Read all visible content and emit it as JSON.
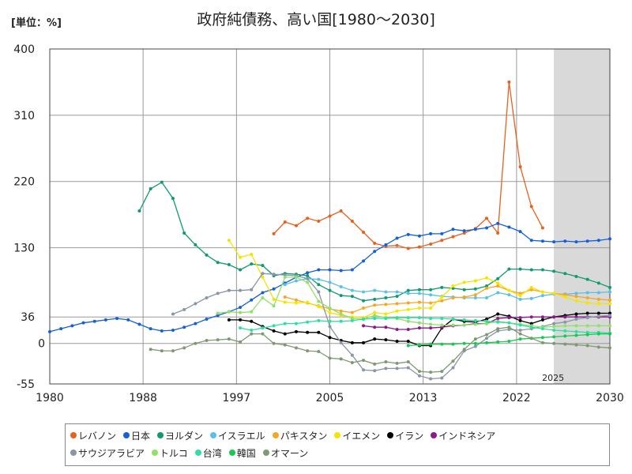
{
  "unit_label": "[単位：%]",
  "chart_data": {
    "type": "line",
    "title": "政府純債務、高い国[1980～2030]",
    "xlabel": "",
    "ylabel": "",
    "xlim": [
      1980,
      2030
    ],
    "ylim": [
      -55,
      400
    ],
    "x_ticks": [
      "1980",
      "1988",
      "1997",
      "2005",
      "2013",
      "2022",
      "2030"
    ],
    "x_tick_values": [
      1980,
      1988.33,
      1996.67,
      2005,
      2013.33,
      2021.67,
      2030
    ],
    "y_ticks": [
      -55,
      0,
      36,
      130,
      220,
      310,
      400
    ],
    "forecast_start": 2025,
    "forecast_label": "2025",
    "forecast_color": "#d9d9d9",
    "grid": true,
    "legend_position": "bottom",
    "series": [
      {
        "name": "レバノン",
        "color": "#e8601c",
        "x": [
          2000,
          2001,
          2002,
          2003,
          2004,
          2005,
          2006,
          2007,
          2008,
          2009,
          2010,
          2011,
          2012,
          2013,
          2014,
          2015,
          2016,
          2017,
          2018,
          2019,
          2020,
          2021,
          2022,
          2023,
          2024
        ],
        "y": [
          149,
          165,
          160,
          170,
          166,
          173,
          180,
          166,
          151,
          136,
          132,
          133,
          129,
          131,
          135,
          140,
          145,
          150,
          156,
          170,
          150,
          355,
          240,
          186,
          157
        ]
      },
      {
        "name": "日本",
        "color": "#1560d8",
        "x": [
          1980,
          1981,
          1982,
          1983,
          1984,
          1985,
          1986,
          1987,
          1988,
          1989,
          1990,
          1991,
          1992,
          1993,
          1994,
          1995,
          1996,
          1997,
          1998,
          1999,
          2000,
          2001,
          2002,
          2003,
          2004,
          2005,
          2006,
          2007,
          2008,
          2009,
          2010,
          2011,
          2012,
          2013,
          2014,
          2015,
          2016,
          2017,
          2018,
          2019,
          2020,
          2021,
          2022,
          2023,
          2024,
          2025,
          2026,
          2027,
          2028,
          2029,
          2030
        ],
        "y": [
          16,
          20,
          24,
          28,
          30,
          32,
          34,
          32,
          26,
          20,
          17,
          18,
          22,
          27,
          33,
          38,
          43,
          49,
          59,
          69,
          74,
          82,
          90,
          96,
          100,
          100,
          99,
          100,
          112,
          125,
          134,
          143,
          148,
          146,
          149,
          149,
          155,
          153,
          155,
          157,
          163,
          158,
          152,
          140,
          139,
          138,
          139,
          138,
          139,
          140,
          142
        ]
      },
      {
        "name": "ヨルダン",
        "color": "#119a70",
        "x": [
          1988,
          1989,
          1990,
          1991,
          1992,
          1993,
          1994,
          1995,
          1996,
          1997,
          1998,
          1999,
          2000,
          2001,
          2002,
          2003,
          2004,
          2005,
          2006,
          2007,
          2008,
          2009,
          2010,
          2011,
          2012,
          2013,
          2014,
          2015,
          2016,
          2017,
          2018,
          2019,
          2020,
          2021,
          2022,
          2023,
          2024,
          2025,
          2026,
          2027,
          2028,
          2029,
          2030
        ],
        "y": [
          180,
          210,
          219,
          197,
          150,
          134,
          120,
          110,
          107,
          100,
          108,
          106,
          92,
          95,
          94,
          92,
          80,
          72,
          65,
          64,
          58,
          60,
          62,
          64,
          72,
          73,
          73,
          76,
          75,
          73,
          74,
          78,
          88,
          101,
          101,
          100,
          100,
          98,
          95,
          91,
          87,
          82,
          76
        ]
      },
      {
        "name": "イスラエル",
        "color": "#5cbfe8",
        "x": [
          2001,
          2002,
          2003,
          2004,
          2005,
          2006,
          2007,
          2008,
          2009,
          2010,
          2011,
          2012,
          2013,
          2014,
          2015,
          2016,
          2017,
          2018,
          2019,
          2020,
          2021,
          2022,
          2023,
          2024,
          2025,
          2026,
          2027,
          2028,
          2029,
          2030
        ],
        "y": [
          80,
          85,
          88,
          87,
          83,
          77,
          72,
          70,
          72,
          70,
          70,
          68,
          68,
          66,
          64,
          63,
          62,
          62,
          62,
          69,
          66,
          60,
          61,
          65,
          67,
          67,
          68,
          69,
          69,
          70
        ]
      },
      {
        "name": "パキスタン",
        "color": "#f5a623",
        "x": [
          2001,
          2002,
          2003,
          2004,
          2005,
          2006,
          2007,
          2008,
          2009,
          2010,
          2011,
          2012,
          2013,
          2014,
          2015,
          2016,
          2017,
          2018,
          2019,
          2020,
          2021,
          2022,
          2023,
          2024,
          2025,
          2026,
          2027,
          2028,
          2029,
          2030
        ],
        "y": [
          63,
          59,
          55,
          51,
          47,
          44,
          42,
          48,
          52,
          53,
          54,
          55,
          56,
          55,
          58,
          62,
          63,
          66,
          75,
          78,
          72,
          68,
          73,
          70,
          68,
          66,
          64,
          62,
          60,
          59
        ]
      },
      {
        "name": "イエメン",
        "color": "#f5e400",
        "x": [
          1996,
          1997,
          1998,
          1999,
          2000,
          2001,
          2002,
          2003,
          2004,
          2005,
          2006,
          2007,
          2008,
          2009,
          2010,
          2011,
          2012,
          2013,
          2014,
          2015,
          2016,
          2017,
          2018,
          2019,
          2020,
          2021,
          2022,
          2023,
          2024,
          2025,
          2026,
          2027,
          2028,
          2029,
          2030
        ],
        "y": [
          140,
          117,
          121,
          90,
          60,
          56,
          55,
          56,
          50,
          42,
          38,
          36,
          35,
          42,
          40,
          44,
          46,
          48,
          48,
          63,
          78,
          83,
          85,
          89,
          82,
          72,
          65,
          76,
          70,
          68,
          63,
          58,
          55,
          54,
          54
        ]
      },
      {
        "name": "イラン",
        "color": "#000000",
        "x": [
          1996,
          1997,
          1998,
          1999,
          2000,
          2001,
          2002,
          2003,
          2004,
          2005,
          2006,
          2007,
          2008,
          2009,
          2010,
          2011,
          2012,
          2013,
          2014,
          2015,
          2016,
          2017,
          2018,
          2019,
          2020,
          2021,
          2022,
          2023,
          2024,
          2025,
          2026,
          2027,
          2028,
          2029,
          2030
        ],
        "y": [
          32,
          32,
          30,
          23,
          17,
          13,
          16,
          15,
          15,
          8,
          4,
          1,
          1,
          6,
          5,
          3,
          3,
          -3,
          -3,
          21,
          33,
          30,
          29,
          33,
          40,
          37,
          31,
          27,
          32,
          36,
          38,
          40,
          41,
          41,
          41
        ]
      },
      {
        "name": "インドネシア",
        "color": "#8a1a8a",
        "x": [
          2008,
          2009,
          2010,
          2011,
          2012,
          2013,
          2014,
          2015,
          2016,
          2017,
          2018,
          2019,
          2020,
          2021,
          2022,
          2023,
          2024,
          2025,
          2026,
          2027,
          2028,
          2029,
          2030
        ],
        "y": [
          24,
          22,
          22,
          19,
          19,
          21,
          21,
          22,
          24,
          25,
          27,
          27,
          34,
          35,
          35,
          36,
          36,
          36,
          36,
          36,
          36,
          36,
          36
        ]
      },
      {
        "name": "サウジアラビア",
        "color": "#8a96a8",
        "x": [
          1991,
          1992,
          1993,
          1994,
          1995,
          1996,
          1997,
          1998,
          1999,
          2000,
          2001,
          2002,
          2003,
          2004,
          2005,
          2006,
          2007,
          2008,
          2009,
          2010,
          2011,
          2012,
          2013,
          2014,
          2015,
          2016,
          2017,
          2018,
          2019,
          2020,
          2021,
          2022,
          2023,
          2024,
          2025,
          2026,
          2027,
          2028,
          2029,
          2030
        ],
        "y": [
          40,
          46,
          54,
          62,
          68,
          72,
          72,
          73,
          95,
          94,
          93,
          92,
          88,
          70,
          23,
          1,
          -16,
          -36,
          -37,
          -34,
          -34,
          -33,
          -44,
          -48,
          -47,
          -33,
          -10,
          -4,
          7,
          17,
          19,
          18,
          20,
          23,
          27,
          29,
          33,
          35,
          37,
          38
        ]
      },
      {
        "name": "トルコ",
        "color": "#90e06a",
        "x": [
          1995,
          1996,
          1997,
          1998,
          1999,
          2000,
          2001,
          2002,
          2003,
          2004,
          2005,
          2006,
          2007,
          2008,
          2009,
          2010,
          2011,
          2012,
          2013,
          2014,
          2015,
          2016,
          2017,
          2018,
          2019,
          2020,
          2021,
          2022,
          2023,
          2024,
          2025,
          2026,
          2027,
          2028,
          2029,
          2030
        ],
        "y": [
          41,
          43,
          42,
          43,
          62,
          51,
          90,
          90,
          83,
          57,
          48,
          40,
          34,
          33,
          38,
          35,
          34,
          30,
          28,
          26,
          25,
          25,
          25,
          26,
          27,
          30,
          28,
          26,
          24,
          22,
          23,
          24,
          24,
          24,
          24,
          24
        ]
      },
      {
        "name": "台湾",
        "color": "#2ee0a0",
        "x": [
          1997,
          1998,
          1999,
          2000,
          2001,
          2002,
          2003,
          2004,
          2005,
          2006,
          2007,
          2008,
          2009,
          2010,
          2011,
          2012,
          2013,
          2014,
          2015,
          2016,
          2017,
          2018,
          2019,
          2020,
          2021,
          2022,
          2023,
          2024,
          2025,
          2026,
          2027,
          2028,
          2029,
          2030
        ],
        "y": [
          21,
          18,
          21,
          24,
          27,
          27,
          29,
          31,
          30,
          30,
          31,
          33,
          34,
          34,
          35,
          35,
          35,
          34,
          34,
          33,
          32,
          31,
          30,
          29,
          28,
          25,
          22,
          20,
          18,
          17,
          16,
          15,
          15,
          14
        ]
      },
      {
        "name": "韓国",
        "color": "#18c850",
        "x": [
          2012,
          2013,
          2014,
          2015,
          2016,
          2017,
          2018,
          2019,
          2020,
          2021,
          2022,
          2023,
          2024,
          2025,
          2026,
          2027,
          2028,
          2029,
          2030
        ],
        "y": [
          -3,
          -2,
          -1,
          -1,
          -1,
          0,
          0,
          1,
          2,
          3,
          6,
          7,
          8,
          9,
          10,
          11,
          12,
          13,
          13
        ]
      },
      {
        "name": "オマーン",
        "color": "#7d9a70",
        "x": [
          1989,
          1990,
          1991,
          1992,
          1993,
          1994,
          1995,
          1996,
          1997,
          1998,
          1999,
          2000,
          2001,
          2002,
          2003,
          2004,
          2005,
          2006,
          2007,
          2008,
          2009,
          2010,
          2011,
          2012,
          2013,
          2014,
          2015,
          2016,
          2017,
          2018,
          2019,
          2020,
          2021,
          2022,
          2023,
          2024,
          2025,
          2026,
          2027,
          2028,
          2029,
          2030
        ],
        "y": [
          -8,
          -10,
          -10,
          -6,
          0,
          4,
          5,
          6,
          2,
          13,
          13,
          0,
          -2,
          -6,
          -10,
          -11,
          -20,
          -21,
          -26,
          -23,
          -28,
          -25,
          -27,
          -25,
          -38,
          -39,
          -38,
          -24,
          -8,
          6,
          12,
          20,
          22,
          13,
          7,
          1,
          0,
          -1,
          -2,
          -3,
          -5,
          -6
        ]
      }
    ]
  }
}
